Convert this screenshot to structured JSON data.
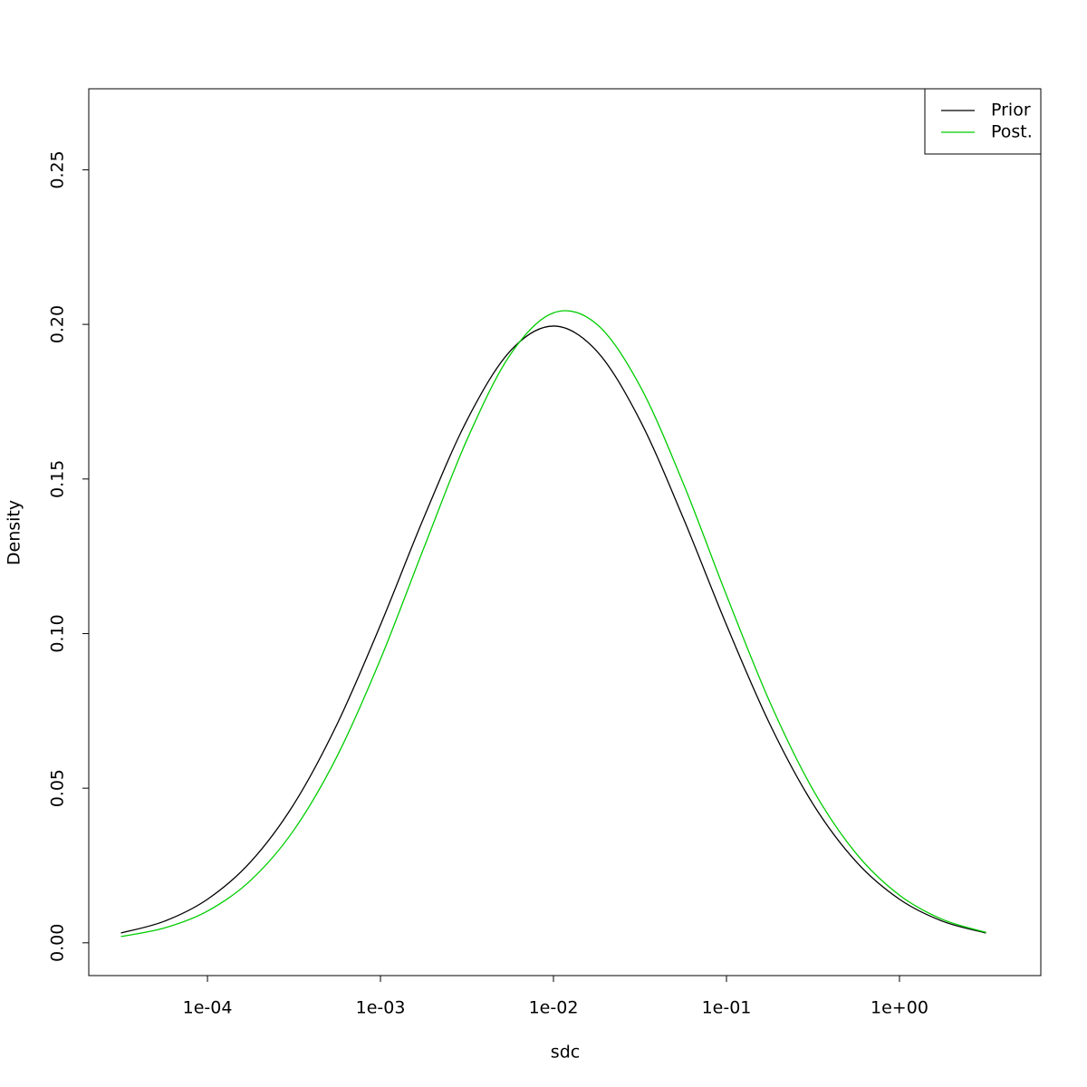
{
  "chart_data": {
    "type": "line",
    "xlabel": "sdc",
    "ylabel": "Density",
    "xscale": "log",
    "legend": "topright",
    "x": [
      3.162e-05,
      5.623e-05,
      0.0001,
      0.0001778,
      0.0003162,
      0.0005623,
      0.001,
      0.001778,
      0.003162,
      0.005623,
      0.01,
      0.01778,
      0.03162,
      0.05623,
      0.1,
      0.1778,
      0.3162,
      0.5623,
      1,
      1.778,
      3.162
    ],
    "series": [
      {
        "name": "Prior",
        "color": "#000000",
        "values": [
          0.00317,
          0.00696,
          0.01408,
          0.02621,
          0.0449,
          0.07081,
          0.10281,
          0.1374,
          0.16901,
          0.19137,
          0.19947,
          0.19137,
          0.16901,
          0.1374,
          0.10281,
          0.07081,
          0.0449,
          0.02621,
          0.01408,
          0.00696,
          0.00317
        ]
      },
      {
        "name": "Post.",
        "color": "#00cd00",
        "values": [
          0.00203,
          0.00477,
          0.01026,
          0.02021,
          0.03651,
          0.06043,
          0.09172,
          0.12759,
          0.1627,
          0.19017,
          0.20374,
          0.20008,
          0.1801,
          0.14861,
          0.11241,
          0.07794,
          0.04951,
          0.02885,
          0.0154,
          0.00754,
          0.00338
        ]
      }
    ],
    "xlim": [
      2.06e-05,
      6.56
    ],
    "xticks": [
      {
        "value": 0.0001,
        "label": "1e-04"
      },
      {
        "value": 0.001,
        "label": "1e-03"
      },
      {
        "value": 0.01,
        "label": "1e-02"
      },
      {
        "value": 0.1,
        "label": "1e-01"
      },
      {
        "value": 1,
        "label": "1e+00"
      }
    ],
    "ylim": [
      -0.0106,
      0.2762
    ],
    "yticks": [
      {
        "value": 0,
        "label": "0.00"
      },
      {
        "value": 0.05,
        "label": "0.05"
      },
      {
        "value": 0.1,
        "label": "0.10"
      },
      {
        "value": 0.15,
        "label": "0.15"
      },
      {
        "value": 0.2,
        "label": "0.20"
      },
      {
        "value": 0.25,
        "label": "0.25"
      }
    ],
    "grid": false
  }
}
